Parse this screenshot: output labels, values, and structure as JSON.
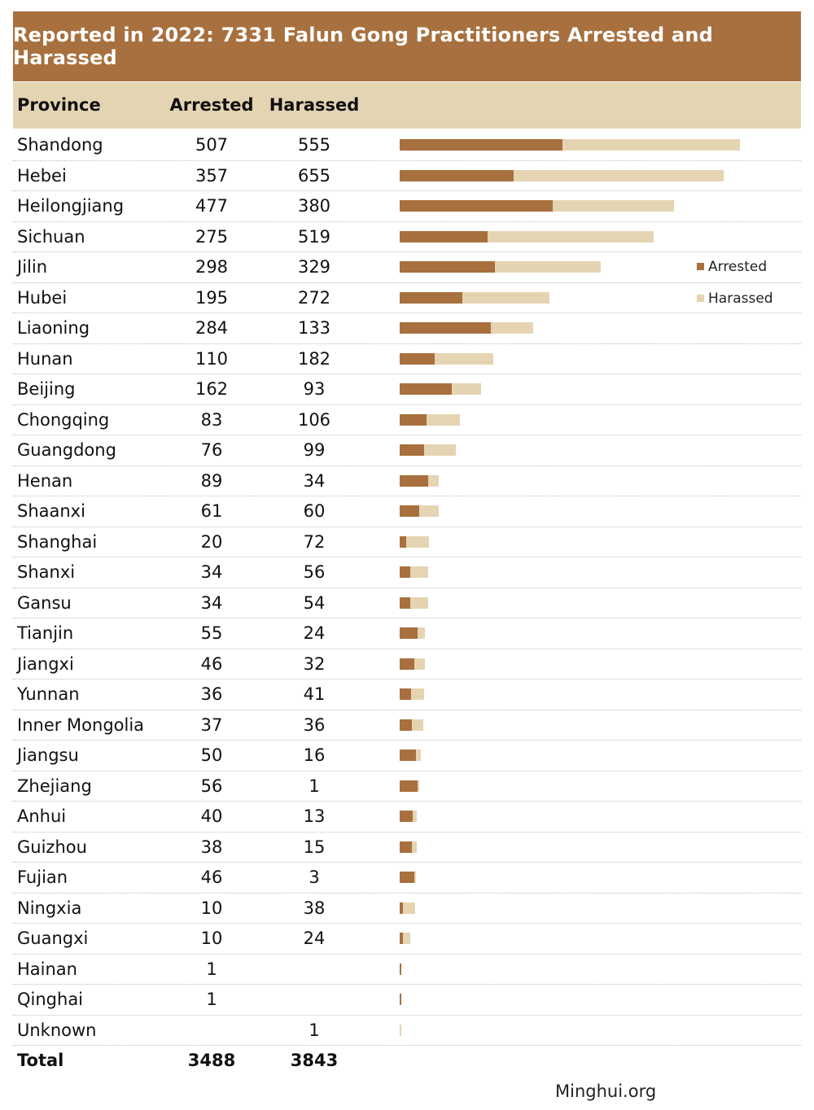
{
  "title": "Reported in 2022: 7331 Falun Gong Practitioners Arrested and Harassed",
  "headers": {
    "province": "Province",
    "arrested": "Arrested",
    "harassed": "Harassed"
  },
  "legend": {
    "arrested": "Arrested",
    "harassed": "Harassed"
  },
  "colors": {
    "arrested": "#a8703e",
    "harassed": "#e5d4b2",
    "banner": "#a8703e",
    "header_band": "#e5d4b2"
  },
  "footer": "Minghui.org",
  "total": {
    "label": "Total",
    "arrested": "3488",
    "harassed": "3843"
  },
  "chart_data": {
    "type": "bar",
    "orientation": "horizontal",
    "stacked": true,
    "title": "Reported in 2022: 7331 Falun Gong Practitioners Arrested and Harassed",
    "legend_position": "right",
    "categories": [
      "Shandong",
      "Hebei",
      "Heilongjiang",
      "Sichuan",
      "Jilin",
      "Hubei",
      "Liaoning",
      "Hunan",
      "Beijing",
      "Chongqing",
      "Guangdong",
      "Henan",
      "Shaanxi",
      "Shanghai",
      "Shanxi",
      "Gansu",
      "Tianjin",
      "Jiangxi",
      "Yunnan",
      "Inner Mongolia",
      "Jiangsu",
      "Zhejiang",
      "Anhui",
      "Guizhou",
      "Fujian",
      "Ningxia",
      "Guangxi",
      "Hainan",
      "Qinghai",
      "Unknown"
    ],
    "series": [
      {
        "name": "Arrested",
        "values": [
          507,
          357,
          477,
          275,
          298,
          195,
          284,
          110,
          162,
          83,
          76,
          89,
          61,
          20,
          34,
          34,
          55,
          46,
          36,
          37,
          50,
          56,
          40,
          38,
          46,
          10,
          10,
          1,
          1,
          null
        ]
      },
      {
        "name": "Harassed",
        "values": [
          555,
          655,
          380,
          519,
          329,
          272,
          133,
          182,
          93,
          106,
          99,
          34,
          60,
          72,
          56,
          54,
          24,
          32,
          41,
          36,
          16,
          1,
          13,
          15,
          3,
          38,
          24,
          null,
          null,
          1
        ]
      }
    ]
  }
}
